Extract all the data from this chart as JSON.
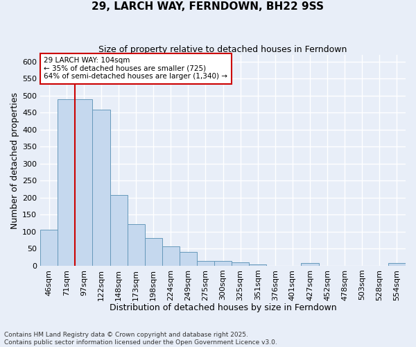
{
  "title": "29, LARCH WAY, FERNDOWN, BH22 9SS",
  "subtitle": "Size of property relative to detached houses in Ferndown",
  "xlabel": "Distribution of detached houses by size in Ferndown",
  "ylabel": "Number of detached properties",
  "footer": "Contains HM Land Registry data © Crown copyright and database right 2025.\nContains public sector information licensed under the Open Government Licence v3.0.",
  "categories": [
    "46sqm",
    "71sqm",
    "97sqm",
    "122sqm",
    "148sqm",
    "173sqm",
    "198sqm",
    "224sqm",
    "249sqm",
    "275sqm",
    "300sqm",
    "325sqm",
    "351sqm",
    "376sqm",
    "401sqm",
    "427sqm",
    "452sqm",
    "478sqm",
    "503sqm",
    "528sqm",
    "554sqm"
  ],
  "values": [
    105,
    490,
    490,
    460,
    207,
    122,
    82,
    57,
    40,
    14,
    14,
    10,
    3,
    0,
    0,
    7,
    0,
    0,
    0,
    0,
    7
  ],
  "bar_color": "#c5d8ee",
  "bar_edge_color": "#6699bb",
  "vline_x_index": 1.5,
  "annotation_text": "29 LARCH WAY: 104sqm\n← 35% of detached houses are smaller (725)\n64% of semi-detached houses are larger (1,340) →",
  "annotation_box_color": "#ffffff",
  "annotation_box_edge_color": "#cc0000",
  "vline_color": "#cc0000",
  "bg_color": "#e8eef8",
  "grid_color": "#ffffff",
  "ylim": [
    0,
    620
  ],
  "yticks": [
    0,
    50,
    100,
    150,
    200,
    250,
    300,
    350,
    400,
    450,
    500,
    550,
    600
  ],
  "title_fontsize": 11,
  "subtitle_fontsize": 9,
  "ylabel_fontsize": 9,
  "xlabel_fontsize": 9,
  "tick_fontsize": 8,
  "footer_fontsize": 6.5,
  "ann_fontsize": 7.5
}
